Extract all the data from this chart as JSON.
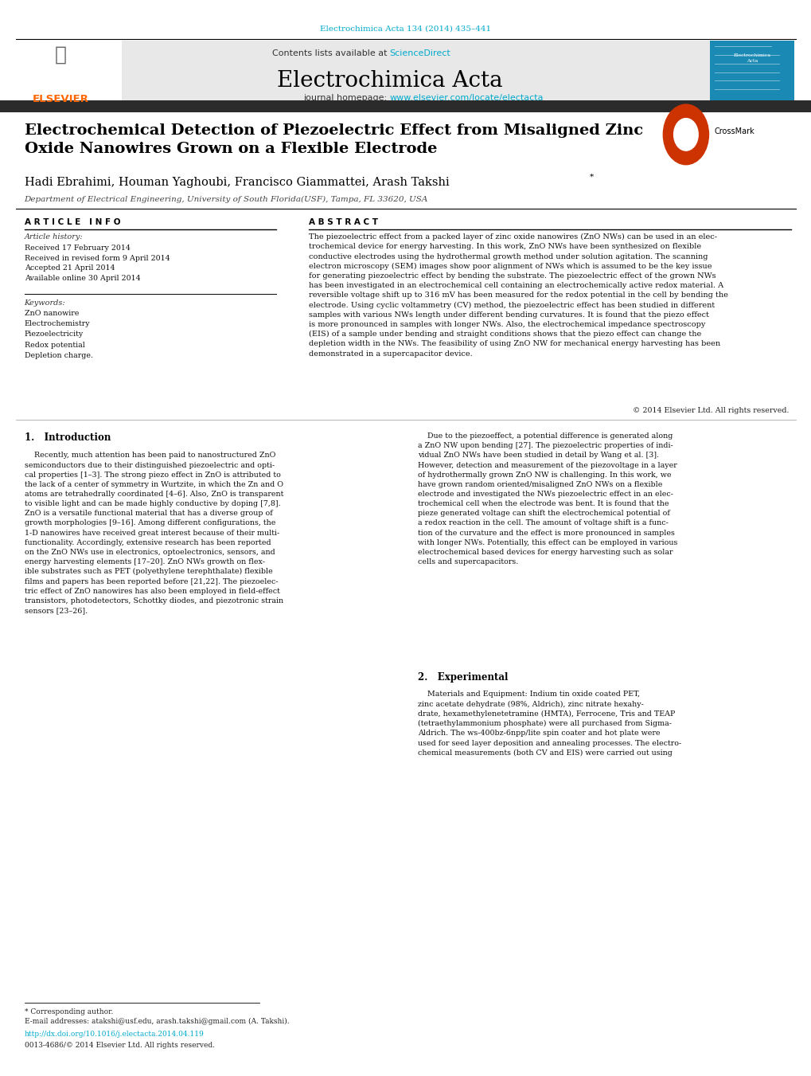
{
  "page_bg": "#ffffff",
  "top_journal_ref": "Electrochimica Acta 134 (2014) 435–441",
  "top_journal_ref_color": "#00aacc",
  "header_bg": "#e8e8e8",
  "header_text": "Contents lists available at ",
  "header_sciencedirect": "ScienceDirect",
  "header_sciencedirect_color": "#00aacc",
  "journal_name": "Electrochimica Acta",
  "journal_homepage_prefix": "journal homepage: ",
  "journal_homepage_url": "www.elsevier.com/locate/electacta",
  "journal_homepage_url_color": "#00aacc",
  "elsevier_text": "ELSEVIER",
  "elsevier_color": "#ff6600",
  "dark_bar_color": "#2b2b2b",
  "article_title": "Electrochemical Detection of Piezoelectric Effect from Misaligned Zinc\nOxide Nanowires Grown on a Flexible Electrode",
  "authors": "Hadi Ebrahimi, Houman Yaghoubi, Francisco Giammattei, Arash Takshi",
  "authors_asterisk": "*",
  "affiliation": "Department of Electrical Engineering, University of South Florida(USF), Tampa, FL 33620, USA",
  "section_article_info": "A R T I C L E   I N F O",
  "section_abstract": "A B S T R A C T",
  "article_history_label": "Article history:",
  "article_history": "Received 17 February 2014\nReceived in revised form 9 April 2014\nAccepted 21 April 2014\nAvailable online 30 April 2014",
  "keywords_label": "Keywords:",
  "keywords": "ZnO nanowire\nElectrochemistry\nPiezoelectricity\nRedox potential\nDepletion charge.",
  "abstract_text": "The piezoelectric effect from a packed layer of zinc oxide nanowires (ZnO NWs) can be used in an elec-\ntrochemical device for energy harvesting. In this work, ZnO NWs have been synthesized on flexible\nconductive electrodes using the hydrothermal growth method under solution agitation. The scanning\nelectron microscopy (SEM) images show poor alignment of NWs which is assumed to be the key issue\nfor generating piezoelectric effect by bending the substrate. The piezoelectric effect of the grown NWs\nhas been investigated in an electrochemical cell containing an electrochemically active redox material. A\nreversible voltage shift up to 316 mV has been measured for the redox potential in the cell by bending the\nelectrode. Using cyclic voltammetry (CV) method, the piezoelectric effect has been studied in different\nsamples with various NWs length under different bending curvatures. It is found that the piezo effect\nis more pronounced in samples with longer NWs. Also, the electrochemical impedance spectroscopy\n(EIS) of a sample under bending and straight conditions shows that the piezo effect can change the\ndepletion width in the NWs. The feasibility of using ZnO NW for mechanical energy harvesting has been\ndemonstrated in a supercapacitor device.",
  "copyright": "© 2014 Elsevier Ltd. All rights reserved.",
  "section_intro": "1.   Introduction",
  "intro_col1": "    Recently, much attention has been paid to nanostructured ZnO\nsemiconductors due to their distinguished piezoelectric and opti-\ncal properties [1–3]. The strong piezo effect in ZnO is attributed to\nthe lack of a center of symmetry in Wurtzite, in which the Zn and O\natoms are tetrahedrally coordinated [4–6]. Also, ZnO is transparent\nto visible light and can be made highly conductive by doping [7,8].\nZnO is a versatile functional material that has a diverse group of\ngrowth morphologies [9–16]. Among different configurations, the\n1-D nanowires have received great interest because of their multi-\nfunctionality. Accordingly, extensive research has been reported\non the ZnO NWs use in electronics, optoelectronics, sensors, and\nenergy harvesting elements [17–20]. ZnO NWs growth on flex-\nible substrates such as PET (polyethylene terephthalate) flexible\nfilms and papers has been reported before [21,22]. The piezoelec-\ntric effect of ZnO nanowires has also been employed in field-effect\ntransistors, photodetectors, Schottky diodes, and piezotronic strain\nsensors [23–26].",
  "intro_col2": "    Due to the piezoeffect, a potential difference is generated along\na ZnO NW upon bending [27]. The piezoelectric properties of indi-\nvidual ZnO NWs have been studied in detail by Wang et al. [3].\nHowever, detection and measurement of the piezovoltage in a layer\nof hydrothermally grown ZnO NW is challenging. In this work, we\nhave grown random oriented/misaligned ZnO NWs on a flexible\nelectrode and investigated the NWs piezoelectric effect in an elec-\ntrochemical cell when the electrode was bent. It is found that the\npieze generated voltage can shift the electrochemical potential of\na redox reaction in the cell. The amount of voltage shift is a func-\ntion of the curvature and the effect is more pronounced in samples\nwith longer NWs. Potentially, this effect can be employed in various\nelectrochemical based devices for energy harvesting such as solar\ncells and supercapacitors.",
  "section_experimental": "2.   Experimental",
  "experimental_text": "    Materials and Equipment: Indium tin oxide coated PET,\nzinc acetate dehydrate (98%, Aldrich), zinc nitrate hexahy-\ndrate, hexamethylenetetramine (HMTA), Ferrocene, Tris and TEAP\n(tetraethylammonium phosphate) were all purchased from Sigma-\nAldrich. The ws-400bz-6npp/lite spin coater and hot plate were\nused for seed layer deposition and annealing processes. The electro-\nchemical measurements (both CV and EIS) were carried out using",
  "footnote_asterisk": "* Corresponding author.",
  "footnote_email": "E-mail addresses: atakshi@usf.edu, arash.takshi@gmail.com (A. Takshi).",
  "footnote_doi": "http://dx.doi.org/10.1016/j.electacta.2014.04.119",
  "footnote_issn": "0013-4686/© 2014 Elsevier Ltd. All rights reserved.",
  "link_color": "#00aacc",
  "text_color": "#000000",
  "italic_color": "#555555"
}
